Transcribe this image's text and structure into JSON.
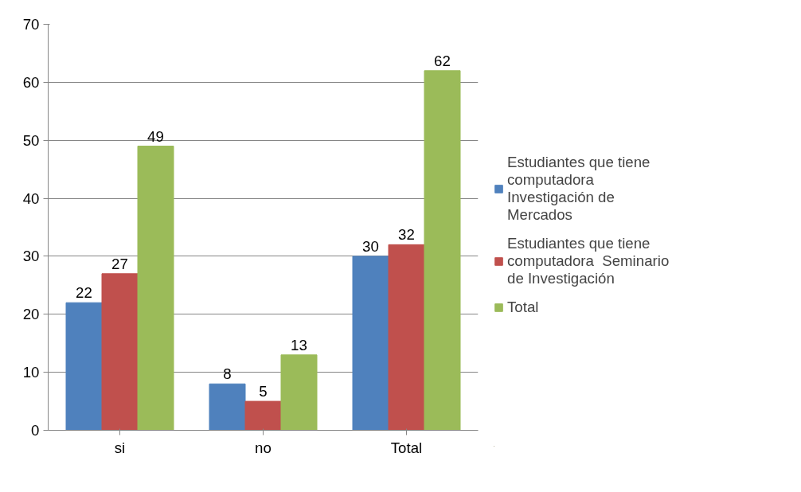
{
  "chart_data": {
    "type": "bar",
    "categories": [
      "si",
      "no",
      "Total"
    ],
    "series": [
      {
        "name": "Estudiantes que tiene computadora  Investigación de Mercados",
        "color": "#4f81bd",
        "values": [
          22,
          8,
          30
        ]
      },
      {
        "name": "Estudiantes que tiene computadora  Seminario de Investigación",
        "color": "#c0504d",
        "values": [
          27,
          5,
          32
        ]
      },
      {
        "name": "Total",
        "color": "#9bbb59",
        "values": [
          49,
          13,
          62
        ]
      }
    ],
    "ylim": [
      0,
      70
    ],
    "yticks": [
      0,
      10,
      20,
      30,
      40,
      50,
      60,
      70
    ],
    "grid": "y",
    "legend": "right",
    "data_labels": true
  }
}
